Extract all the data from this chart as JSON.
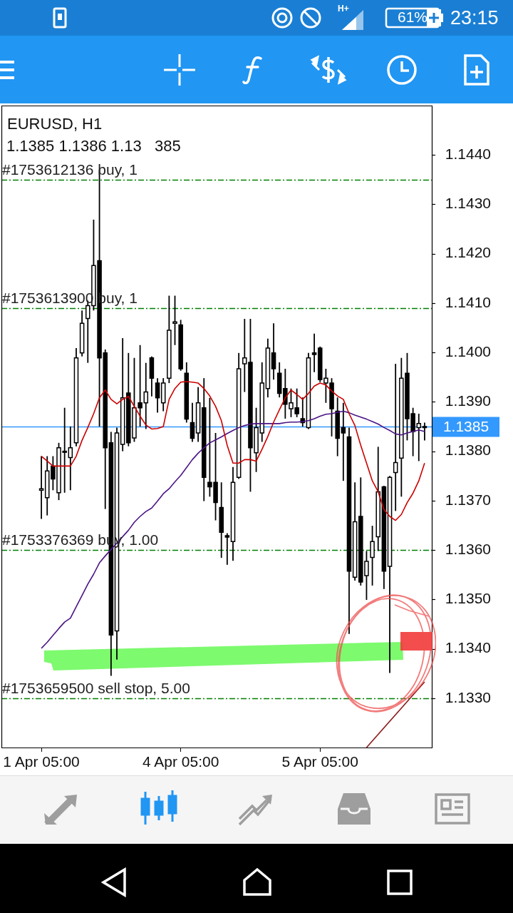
{
  "chart_data": {
    "type": "candlestick",
    "title": "EURUSD, H1",
    "subtitle": "1.1385 1.1386 1.13   385",
    "categories": [
      "1 Apr 05:00",
      null,
      null,
      null,
      null,
      null,
      null,
      null,
      null,
      null,
      null,
      null,
      null,
      null,
      null,
      null,
      null,
      null,
      null,
      null,
      null,
      null,
      null,
      null,
      "4 Apr 05:00",
      null,
      null,
      null,
      null,
      null,
      null,
      null,
      null,
      null,
      null,
      null,
      null,
      null,
      null,
      null,
      null,
      null,
      null,
      null,
      null,
      null,
      null,
      null,
      "5 Apr 05:00",
      null,
      null,
      null,
      null,
      null,
      null,
      null,
      null,
      null,
      null,
      null,
      null,
      null,
      null,
      null,
      null,
      null,
      null
    ],
    "ohlc": [
      [
        1.13721,
        1.1379,
        1.13663,
        1.13724
      ],
      [
        1.13706,
        1.1379,
        1.1367,
        1.1376
      ],
      [
        1.1377,
        1.1379,
        1.13721,
        1.13744
      ],
      [
        1.13716,
        1.13817,
        1.13701,
        1.13807
      ],
      [
        1.138,
        1.13888,
        1.13716,
        1.138
      ],
      [
        1.13787,
        1.1385,
        1.13721,
        1.13807
      ],
      [
        1.13817,
        1.14009,
        1.1381,
        1.13989
      ],
      [
        1.13999,
        1.14085,
        1.13992,
        1.14059
      ],
      [
        1.14069,
        1.14105,
        1.13979,
        1.14095
      ],
      [
        1.14095,
        1.14269,
        1.14085,
        1.14176
      ],
      [
        1.14186,
        1.1437,
        1.1385,
        1.13989
      ],
      [
        1.13999,
        1.14006,
        1.13683,
        1.13807
      ],
      [
        1.13817,
        1.13839,
        1.13345,
        1.13428
      ],
      [
        1.13436,
        1.13848,
        1.13378,
        1.13837
      ],
      [
        1.13814,
        1.14029,
        1.138,
        1.13908
      ],
      [
        1.13918,
        1.13999,
        1.1381,
        1.13817
      ],
      [
        1.13827,
        1.13989,
        1.13819,
        1.13888
      ],
      [
        1.13898,
        1.14015,
        1.1385,
        1.13888
      ],
      [
        1.13898,
        1.13979,
        1.13845,
        1.1392
      ],
      [
        1.13989,
        1.13992,
        1.13911,
        1.13948
      ],
      [
        1.13938,
        1.13948,
        1.13878,
        1.13908
      ],
      [
        1.13898,
        1.13948,
        1.13881,
        1.13938
      ],
      [
        1.13948,
        1.14115,
        1.13938,
        1.14045
      ],
      [
        1.14059,
        1.14115,
        1.14015,
        1.14062
      ],
      [
        1.14056,
        1.14066,
        1.13963,
        1.13967
      ],
      [
        1.13958,
        1.1398,
        1.13858,
        1.13865
      ],
      [
        1.13858,
        1.13898,
        1.13819,
        1.13826
      ],
      [
        1.13837,
        1.1393,
        1.13819,
        1.13898
      ],
      [
        1.13888,
        1.13948,
        1.13699,
        1.13747
      ],
      [
        1.13737,
        1.13908,
        1.13708,
        1.13728
      ],
      [
        1.13737,
        1.13837,
        1.1366,
        1.13696
      ],
      [
        1.13686,
        1.13737,
        1.13584,
        1.13636
      ],
      [
        1.13629,
        1.13634,
        1.1357,
        1.13626
      ],
      [
        1.13617,
        1.13768,
        1.13578,
        1.13737
      ],
      [
        1.13747,
        1.13999,
        1.13744,
        1.13967
      ],
      [
        1.13977,
        1.14068,
        1.1392,
        1.13989
      ],
      [
        1.1398,
        1.14068,
        1.13718,
        1.13807
      ],
      [
        1.13797,
        1.13888,
        1.13758,
        1.13848
      ],
      [
        1.13837,
        1.1398,
        1.13819,
        1.13938
      ],
      [
        1.13927,
        1.14028,
        1.13909,
        1.14009
      ],
      [
        1.13999,
        1.14059,
        1.13945,
        1.13967
      ],
      [
        1.13958,
        1.1398,
        1.13909,
        1.13917
      ],
      [
        1.13927,
        1.13967,
        1.13866,
        1.13895
      ],
      [
        1.13886,
        1.13927,
        1.13869,
        1.13898
      ],
      [
        1.13888,
        1.13927,
        1.13869,
        1.13876
      ],
      [
        1.13866,
        1.13909,
        1.1385,
        1.13858
      ],
      [
        1.13848,
        1.13999,
        1.13845,
        1.13989
      ],
      [
        1.13999,
        1.14038,
        1.1396,
        1.13996
      ],
      [
        1.14009,
        1.14012,
        1.1394,
        1.13945
      ],
      [
        1.13938,
        1.13967,
        1.13898,
        1.13948
      ],
      [
        1.13938,
        1.13948,
        1.1383,
        1.13886
      ],
      [
        1.13881,
        1.13909,
        1.1379,
        1.13826
      ],
      [
        1.13848,
        1.13898,
        1.1374,
        1.13837
      ],
      [
        1.13829,
        1.13848,
        1.1343,
        1.13557
      ],
      [
        1.13545,
        1.13737,
        1.13538,
        1.13657
      ],
      [
        1.13668,
        1.13747,
        1.13528,
        1.13535
      ],
      [
        1.13548,
        1.13598,
        1.13499,
        1.13577
      ],
      [
        1.13585,
        1.13649,
        1.13528,
        1.13617
      ],
      [
        1.13627,
        1.13809,
        1.13598,
        1.13718
      ],
      [
        1.13728,
        1.1373,
        1.13521,
        1.13557
      ],
      [
        1.13567,
        1.1375,
        1.13351,
        1.13747
      ],
      [
        1.13757,
        1.13977,
        1.13679,
        1.13777
      ],
      [
        1.13786,
        1.13989,
        1.13708,
        1.13948
      ],
      [
        1.13958,
        1.13999,
        1.13822,
        1.13866
      ],
      [
        1.13876,
        1.13888,
        1.1379,
        1.1384
      ],
      [
        1.13848,
        1.13876,
        1.1378,
        1.13856
      ],
      [
        1.1385,
        1.13858,
        1.13822,
        1.1385
      ]
    ],
    "series": [
      {
        "type": "line",
        "color": "#cc0000",
        "values": [
          1.1379,
          1.1378,
          1.1377,
          1.1377,
          1.1377,
          1.1377,
          1.1379,
          1.13822,
          1.13848,
          1.13876,
          1.13908,
          1.13924,
          1.13905,
          1.13896,
          1.13905,
          1.13911,
          1.13891,
          1.13871,
          1.13853,
          1.13845,
          1.13846,
          1.1385,
          1.13905,
          1.13927,
          1.1394,
          1.13941,
          1.1394,
          1.13938,
          1.13927,
          1.13912,
          1.13891,
          1.13862,
          1.13812,
          1.13776,
          1.13776,
          1.13783,
          1.13783,
          1.1378,
          1.13804,
          1.1383,
          1.13859,
          1.13884,
          1.13908,
          1.13924,
          1.13915,
          1.13905,
          1.13917,
          1.13932,
          1.13938,
          1.13934,
          1.13922,
          1.13912,
          1.13905,
          1.13876,
          1.13852,
          1.13812,
          1.13776,
          1.1374,
          1.13718,
          1.13682,
          1.13668,
          1.1366,
          1.13672,
          1.13696,
          1.13715,
          1.1374,
          1.13776
        ]
      },
      {
        "type": "line",
        "color": "#4b1485",
        "values": [
          1.13401,
          1.13413,
          1.13427,
          1.13441,
          1.13454,
          1.13462,
          1.13485,
          1.13508,
          1.13531,
          1.13551,
          1.13574,
          1.13588,
          1.13601,
          1.13614,
          1.13627,
          1.1364,
          1.13656,
          1.13668,
          1.13678,
          1.13685,
          1.13699,
          1.13714,
          1.13724,
          1.13738,
          1.13751,
          1.13767,
          1.13783,
          1.13796,
          1.13807,
          1.13817,
          1.13823,
          1.13829,
          1.13836,
          1.13842,
          1.13848,
          1.13852,
          1.13855,
          1.13856,
          1.13856,
          1.13856,
          1.13856,
          1.13856,
          1.13858,
          1.13859,
          1.13859,
          1.1386,
          1.13862,
          1.13866,
          1.13871,
          1.13875,
          1.13876,
          1.13879,
          1.13881,
          1.13878,
          1.13873,
          1.13869,
          1.13865,
          1.1386,
          1.13855,
          1.13848,
          1.13842,
          1.13835,
          1.13833,
          1.13837,
          1.1384,
          1.13843,
          1.1384
        ]
      },
      {
        "type": "line",
        "color": "#8b1a1a",
        "values": [
          null,
          null,
          null,
          null,
          null,
          null,
          null,
          null,
          null,
          null,
          null,
          null,
          null,
          null,
          null,
          null,
          null,
          null,
          null,
          null,
          null,
          null,
          null,
          null,
          null,
          null,
          null,
          null,
          null,
          null,
          null,
          null,
          null,
          null,
          null,
          null,
          null,
          null,
          null,
          null,
          null,
          null,
          null,
          null,
          null,
          null,
          null,
          null,
          null,
          null,
          null,
          null,
          null,
          null,
          null,
          null,
          1.132,
          null,
          null,
          null,
          null,
          null,
          null,
          null,
          null,
          null,
          1.13333
        ]
      }
    ],
    "ylim": [
      1.132,
      1.145
    ],
    "yticks": [
      {
        "value": 1.133,
        "label": "1.1330"
      },
      {
        "value": 1.134,
        "label": "1.1340"
      },
      {
        "value": 1.135,
        "label": "1.1350"
      },
      {
        "value": 1.136,
        "label": "1.1360"
      },
      {
        "value": 1.137,
        "label": "1.1370"
      },
      {
        "value": 1.138,
        "label": "1.1380"
      },
      {
        "value": 1.139,
        "label": "1.1390"
      },
      {
        "value": 1.14,
        "label": "1.1400"
      },
      {
        "value": 1.141,
        "label": "1.1410"
      },
      {
        "value": 1.142,
        "label": "1.1420"
      },
      {
        "value": 1.143,
        "label": "1.1430"
      },
      {
        "value": 1.144,
        "label": "1.1440"
      }
    ],
    "ref_lines": [
      {
        "axis": "y",
        "value": 1.1435,
        "label": "#1753612136 buy, 1",
        "color": "#008000",
        "line_style": "dashed"
      },
      {
        "axis": "y",
        "value": 1.1409,
        "label": "#1753613900 buy, 1",
        "color": "#008000",
        "line_style": "dashed"
      },
      {
        "axis": "y",
        "value": 1.136,
        "label": "#1753376369 buy, 1.00",
        "color": "#008000",
        "line_style": "dashed"
      },
      {
        "axis": "y",
        "value": 1.133,
        "label": "#1753659500 sell stop, 5.00",
        "color": "#008000",
        "line_style": "dashed"
      },
      {
        "axis": "y",
        "value": 1.1385,
        "label": "1.1385",
        "color": "#3399ff"
      }
    ],
    "annotations": [
      "H+",
      "61%",
      "23:15"
    ]
  }
}
